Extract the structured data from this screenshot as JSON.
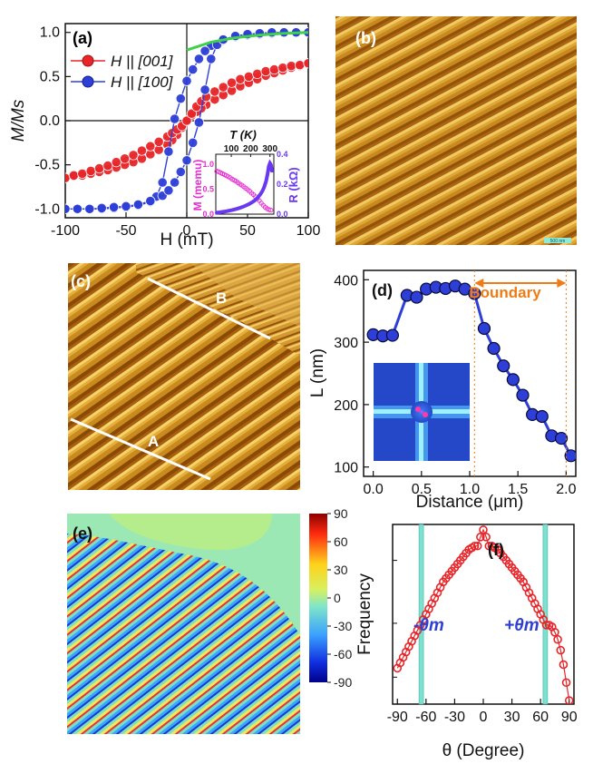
{
  "figure": {
    "panels": {
      "a": {
        "label": "(a)"
      },
      "b": {
        "label": "(b)",
        "scale_bar": "500 nm"
      },
      "c": {
        "label": "(c)",
        "line_A": "A",
        "line_B": "B"
      },
      "d": {
        "label": "(d)",
        "boundary": "Boundary"
      },
      "e": {
        "label": "(e)"
      },
      "f": {
        "label": "(f)",
        "theta_minus": "-θm",
        "theta_plus": "+θm"
      }
    },
    "colors": {
      "red": "#e8262a",
      "blue": "#2e3fd8",
      "green": "#3fd14a",
      "magenta": "#e62fd2",
      "violet": "#6a38f0",
      "orange": "#f07a14",
      "afm_light": "#f0c04a",
      "afm_dark": "#8a4a06",
      "teal": "#7fe0d0"
    }
  },
  "chart_data": [
    {
      "id": "a",
      "type": "scatter",
      "title": "",
      "xlabel": "H (mT)",
      "ylabel": "M/Ms",
      "xlim": [
        -100,
        100
      ],
      "ylim": [
        -1.1,
        1.1
      ],
      "xticks": [
        "-100",
        "-50",
        "0",
        "50",
        "100"
      ],
      "yticks": [
        "1.0",
        "0.5",
        "0.0",
        "-0.5",
        "-1.0"
      ],
      "legend": [
        "H || [001]",
        "H || [100]"
      ],
      "series": [
        {
          "name": "H || [001]",
          "color": "#e8262a",
          "down_x": [
            100,
            93,
            86,
            79,
            72,
            65,
            58,
            51,
            44,
            37,
            30,
            23,
            16,
            12,
            8,
            4,
            0,
            -4,
            -8,
            -12,
            -16,
            -23,
            -30,
            -37,
            -44,
            -51,
            -58,
            -65,
            -72,
            -79,
            -86,
            -93,
            -100
          ],
          "down_y": [
            0.65,
            0.62,
            0.6,
            0.57,
            0.54,
            0.51,
            0.47,
            0.43,
            0.39,
            0.34,
            0.29,
            0.24,
            0.18,
            0.14,
            0.1,
            0.06,
            0.0,
            -0.08,
            -0.16,
            -0.22,
            -0.27,
            -0.33,
            -0.38,
            -0.43,
            -0.47,
            -0.5,
            -0.53,
            -0.56,
            -0.58,
            -0.6,
            -0.62,
            -0.63,
            -0.65
          ],
          "up_x": [
            -100,
            -93,
            -86,
            -79,
            -72,
            -65,
            -58,
            -51,
            -44,
            -37,
            -30,
            -23,
            -16,
            -12,
            -8,
            -4,
            0,
            4,
            8,
            12,
            16,
            23,
            30,
            37,
            44,
            51,
            58,
            65,
            72,
            79,
            86,
            93,
            100
          ],
          "up_y": [
            -0.65,
            -0.62,
            -0.6,
            -0.57,
            -0.54,
            -0.51,
            -0.47,
            -0.43,
            -0.39,
            -0.34,
            -0.29,
            -0.24,
            -0.18,
            -0.14,
            -0.1,
            -0.06,
            0.0,
            0.08,
            0.16,
            0.22,
            0.27,
            0.33,
            0.38,
            0.43,
            0.47,
            0.5,
            0.53,
            0.56,
            0.58,
            0.6,
            0.62,
            0.63,
            0.65
          ]
        },
        {
          "name": "H || [100]",
          "color": "#2e3fd8",
          "down_x": [
            100,
            90,
            80,
            70,
            60,
            50,
            40,
            30,
            20,
            15,
            10,
            5,
            0,
            -5,
            -10,
            -15,
            -20,
            -25,
            -30,
            -40,
            -50,
            -60,
            -70,
            -80,
            -90,
            -100
          ],
          "down_y": [
            1.0,
            1.0,
            1.0,
            0.99,
            0.98,
            0.97,
            0.95,
            0.91,
            0.85,
            0.79,
            0.7,
            0.58,
            0.45,
            0.25,
            0.02,
            -0.35,
            -0.7,
            -0.86,
            -0.92,
            -0.96,
            -0.98,
            -0.99,
            -1.0,
            -1.0,
            -1.0,
            -1.0
          ],
          "up_x": [
            -100,
            -90,
            -80,
            -70,
            -60,
            -50,
            -40,
            -30,
            -20,
            -15,
            -10,
            -5,
            0,
            5,
            10,
            15,
            20,
            25,
            30,
            40,
            50,
            60,
            70,
            80,
            90,
            100
          ],
          "up_y": [
            -1.0,
            -1.0,
            -1.0,
            -0.99,
            -0.98,
            -0.97,
            -0.95,
            -0.91,
            -0.85,
            -0.79,
            -0.7,
            -0.58,
            -0.45,
            -0.25,
            -0.02,
            0.35,
            0.7,
            0.86,
            0.92,
            0.96,
            0.98,
            0.99,
            1.0,
            1.0,
            1.0,
            1.0
          ]
        },
        {
          "name": "fit",
          "color": "#3fd14a",
          "x": [
            0,
            20,
            40,
            60,
            80,
            100
          ],
          "y": [
            0.8,
            0.89,
            0.94,
            0.97,
            0.99,
            1.0
          ]
        }
      ],
      "inset": {
        "xlabel": "T (K)",
        "xticks": [
          "100",
          "200",
          "300"
        ],
        "left_ylabel": "M (memu)",
        "right_ylabel": "R (kΩ)",
        "left_yticks": [
          "0.0",
          "0.5",
          "1.0"
        ],
        "right_yticks": [
          "0.0",
          "0.2",
          "0.4"
        ],
        "xlim": [
          20,
          320
        ],
        "left_ylim": [
          0,
          1.2
        ],
        "right_ylim": [
          0,
          0.4
        ],
        "M_series": {
          "color": "#e62fd2",
          "x": [
            25,
            35,
            45,
            55,
            65,
            75,
            85,
            95,
            105,
            115,
            125,
            135,
            145,
            155,
            165,
            175,
            185,
            195,
            205,
            215,
            225,
            235,
            245,
            255,
            265,
            275,
            285,
            295,
            305
          ],
          "y": [
            0.86,
            0.85,
            0.83,
            0.81,
            0.79,
            0.77,
            0.75,
            0.73,
            0.7,
            0.68,
            0.66,
            0.63,
            0.6,
            0.58,
            0.55,
            0.52,
            0.49,
            0.46,
            0.42,
            0.39,
            0.35,
            0.31,
            0.27,
            0.22,
            0.18,
            0.14,
            0.11,
            0.09,
            0.08
          ]
        },
        "R_series": {
          "color": "#6a38f0",
          "x": [
            25,
            40,
            55,
            70,
            85,
            100,
            115,
            130,
            145,
            160,
            175,
            190,
            205,
            220,
            235,
            250,
            260,
            270,
            280,
            288,
            294,
            300,
            305,
            310
          ],
          "y": [
            0.01,
            0.012,
            0.015,
            0.018,
            0.022,
            0.026,
            0.031,
            0.036,
            0.042,
            0.049,
            0.057,
            0.066,
            0.077,
            0.09,
            0.108,
            0.132,
            0.152,
            0.18,
            0.22,
            0.27,
            0.32,
            0.34,
            0.33,
            0.29
          ]
        }
      }
    },
    {
      "id": "d",
      "type": "line",
      "title": "",
      "xlabel": "Distance (μm)",
      "ylabel": "L (nm)",
      "xlim": [
        -0.1,
        2.1
      ],
      "ylim": [
        85,
        415
      ],
      "xticks": [
        "0.0",
        "0.5",
        "1.0",
        "1.5",
        "2.0"
      ],
      "yticks": [
        "100",
        "200",
        "300",
        "400"
      ],
      "boundary_range": [
        1.05,
        2.0
      ],
      "x": [
        0.0,
        0.1,
        0.2,
        0.35,
        0.45,
        0.55,
        0.65,
        0.75,
        0.85,
        0.95,
        1.05,
        1.15,
        1.25,
        1.35,
        1.45,
        1.55,
        1.65,
        1.75,
        1.85,
        1.95,
        2.05
      ],
      "y": [
        312,
        310,
        311,
        375,
        372,
        385,
        388,
        386,
        390,
        385,
        378,
        322,
        290,
        262,
        240,
        215,
        184,
        181,
        150,
        146,
        118
      ]
    },
    {
      "id": "e",
      "type": "heatmap",
      "colorbar_ticks": [
        "90",
        "60",
        "30",
        "0",
        "-30",
        "-60",
        "-90"
      ],
      "colorbar_range": [
        -90,
        90
      ]
    },
    {
      "id": "f",
      "type": "line",
      "title": "",
      "xlabel": "θ (Degree)",
      "ylabel": "Frequency",
      "xlim": [
        -95,
        95
      ],
      "ylim": [
        0,
        1
      ],
      "xticks": [
        "-90",
        "-60",
        "-30",
        "0",
        "30",
        "60",
        "90"
      ],
      "theta_m": 65,
      "x": [
        -90,
        -87,
        -84,
        -81,
        -78,
        -75,
        -72,
        -69,
        -66,
        -63,
        -60,
        -57,
        -54,
        -51,
        -48,
        -45,
        -42,
        -39,
        -36,
        -33,
        -30,
        -27,
        -24,
        -21,
        -18,
        -15,
        -12,
        -9,
        -6,
        -3,
        0,
        3,
        6,
        9,
        12,
        15,
        18,
        21,
        24,
        27,
        30,
        33,
        36,
        39,
        42,
        45,
        48,
        51,
        54,
        57,
        60,
        63,
        66,
        69,
        72,
        75,
        78,
        81,
        84,
        87,
        90
      ],
      "y": [
        0.2,
        0.23,
        0.26,
        0.29,
        0.32,
        0.35,
        0.38,
        0.41,
        0.44,
        0.47,
        0.5,
        0.53,
        0.56,
        0.59,
        0.62,
        0.65,
        0.68,
        0.7,
        0.72,
        0.74,
        0.76,
        0.78,
        0.8,
        0.82,
        0.84,
        0.86,
        0.87,
        0.88,
        0.88,
        0.93,
        0.97,
        0.93,
        0.88,
        0.88,
        0.87,
        0.86,
        0.84,
        0.82,
        0.8,
        0.78,
        0.76,
        0.74,
        0.72,
        0.7,
        0.68,
        0.65,
        0.62,
        0.59,
        0.56,
        0.53,
        0.5,
        0.47,
        0.44,
        0.44,
        0.43,
        0.4,
        0.36,
        0.3,
        0.22,
        0.12,
        0.02
      ]
    }
  ]
}
